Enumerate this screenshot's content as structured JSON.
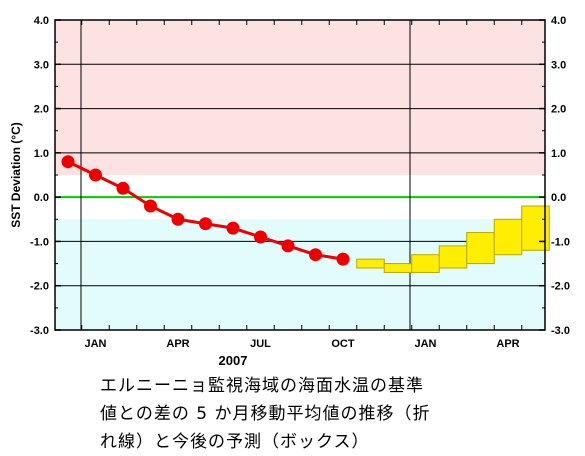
{
  "chart_data": {
    "type": "line",
    "ylabel": "SST Deviation (°C)",
    "ylim": [
      -3.0,
      4.0
    ],
    "yticks": [
      "4.0",
      "3.0",
      "2.0",
      "1.0",
      "0.0",
      "-1.0",
      "-2.0",
      "-3.0"
    ],
    "xtick_labels": [
      "JAN",
      "APR",
      "JUL",
      "OCT",
      "JAN",
      "APR"
    ],
    "year_label": "2007",
    "shading": {
      "warm_band_lower": 0.5,
      "cool_band_upper": -0.5,
      "warm_color": "#fde2e2",
      "cool_color": "#e2fbfb"
    },
    "zero_line_color": "#00cc00",
    "series": [
      {
        "months": [
          "2006-12",
          "2007-01",
          "2007-02",
          "2007-03",
          "2007-04",
          "2007-05",
          "2007-06",
          "2007-07",
          "2007-08",
          "2007-09",
          "2007-10"
        ],
        "values": [
          0.8,
          0.5,
          0.2,
          -0.2,
          -0.5,
          -0.6,
          -0.7,
          -0.9,
          -1.1,
          -1.3,
          -1.4
        ],
        "color": "#ee0000"
      }
    ],
    "forecast_boxes": {
      "months": [
        "2007-11",
        "2007-12",
        "2008-01",
        "2008-02",
        "2008-03",
        "2008-04",
        "2008-05"
      ],
      "low": [
        -1.6,
        -1.7,
        -1.7,
        -1.6,
        -1.5,
        -1.3,
        -1.2
      ],
      "high": [
        -1.4,
        -1.5,
        -1.3,
        -1.1,
        -0.8,
        -0.5,
        -0.2
      ],
      "color": "#ffee00"
    }
  },
  "caption": {
    "line1": "エルニーニョ監視海域の海面水温の基準",
    "line2": "値との差の 5 か月移動平均値の推移（折",
    "line3": "れ線）と今後の予測（ボックス）"
  }
}
